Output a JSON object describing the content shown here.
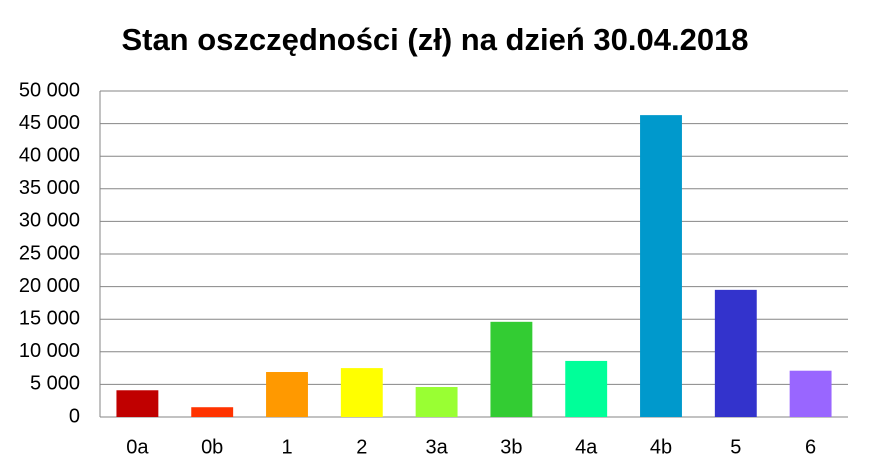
{
  "chart_data": {
    "type": "bar",
    "title": "Stan oszczędności (zł) na dzień 30.04.2018",
    "categories": [
      "0a",
      "0b",
      "1",
      "2",
      "3a",
      "3b",
      "4a",
      "4b",
      "5",
      "6"
    ],
    "values": [
      4100,
      1500,
      6900,
      7500,
      4600,
      14600,
      8600,
      46300,
      19500,
      7100
    ],
    "colors": [
      "#c00000",
      "#ff3300",
      "#ff9900",
      "#ffff00",
      "#99ff33",
      "#33cc33",
      "#00ff99",
      "#0099cc",
      "#3333cc",
      "#9966ff"
    ],
    "ylim": [
      0,
      50000
    ],
    "yticks": [
      0,
      {
        "value": 5000,
        "label": "5 000"
      },
      {
        "value": 10000,
        "label": "10 000"
      },
      {
        "value": 15000,
        "label": "15 000"
      },
      {
        "value": 20000,
        "label": "20 000"
      },
      {
        "value": 25000,
        "label": "25 000"
      },
      {
        "value": 30000,
        "label": "30 000"
      },
      {
        "value": 35000,
        "label": "35 000"
      },
      {
        "value": 40000,
        "label": "40 000"
      },
      {
        "value": 45000,
        "label": "45 000"
      },
      {
        "value": 50000,
        "label": "50 000"
      }
    ],
    "grid": true
  }
}
